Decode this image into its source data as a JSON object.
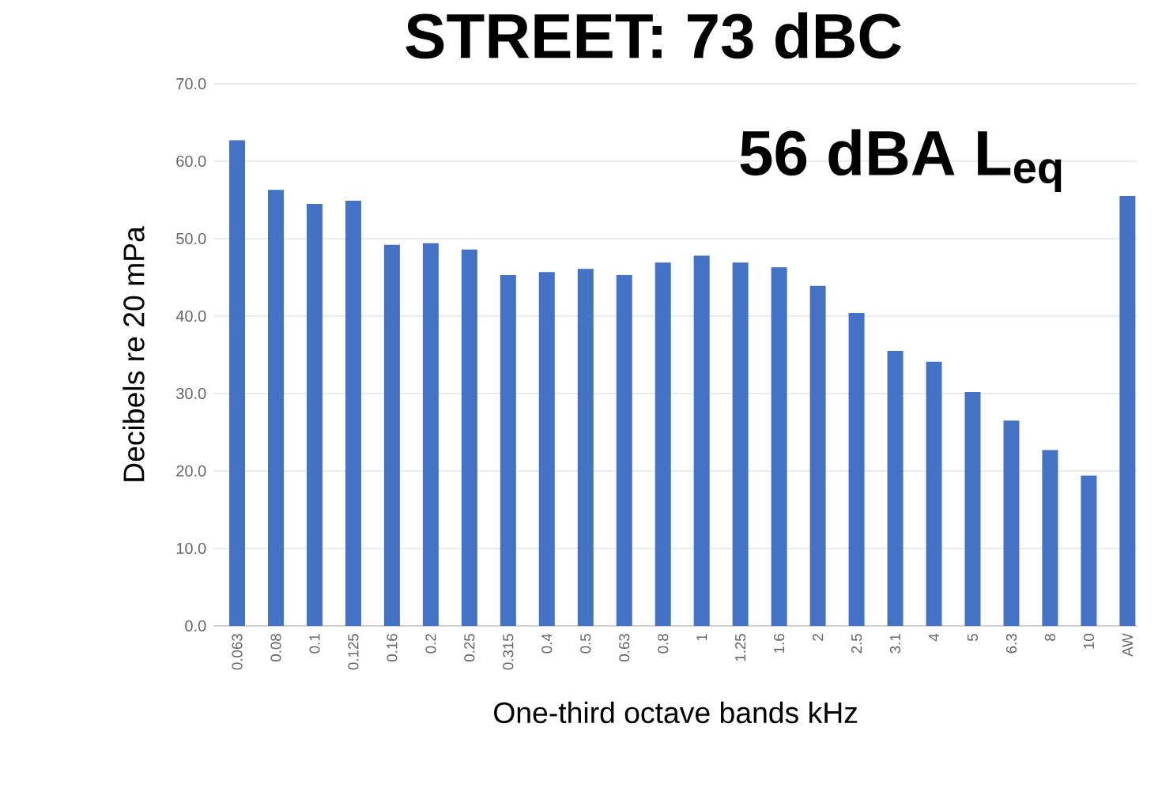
{
  "chart_data": {
    "type": "bar",
    "title": "STREET:   73 dBC",
    "subtitle": "56 dBA L$_{eq}$",
    "xlabel": "One-third octave bands kHz",
    "ylabel": "Decibels re 20 mPa",
    "categories": [
      "0.063",
      "0.08",
      "0.1",
      "0.125",
      "0.16",
      "0.2",
      "0.25",
      "0.315",
      "0.4",
      "0.5",
      "0.63",
      "0.8",
      "1",
      "1.25",
      "1.6",
      "2",
      "2.5",
      "3.1",
      "4",
      "5",
      "6.3",
      "8",
      "10",
      "AW"
    ],
    "values": [
      62.7,
      56.3,
      54.5,
      54.9,
      49.2,
      49.4,
      48.6,
      45.3,
      45.7,
      46.1,
      45.3,
      46.9,
      47.8,
      46.9,
      46.3,
      43.9,
      40.4,
      35.5,
      34.1,
      30.2,
      26.5,
      22.7,
      19.4,
      55.5
    ],
    "color": "#4472c4",
    "ylim": [
      0,
      70
    ],
    "yticks": [
      {
        "value": 0,
        "label": "0.0"
      },
      {
        "value": 10,
        "label": "10.0"
      },
      {
        "value": 20,
        "label": "20.0"
      },
      {
        "value": 30,
        "label": "30.0"
      },
      {
        "value": 40,
        "label": "40.0"
      },
      {
        "value": 50,
        "label": "50.0"
      },
      {
        "value": 60,
        "label": "60.0"
      },
      {
        "value": 70,
        "label": "70.0"
      }
    ],
    "grid": "y"
  }
}
